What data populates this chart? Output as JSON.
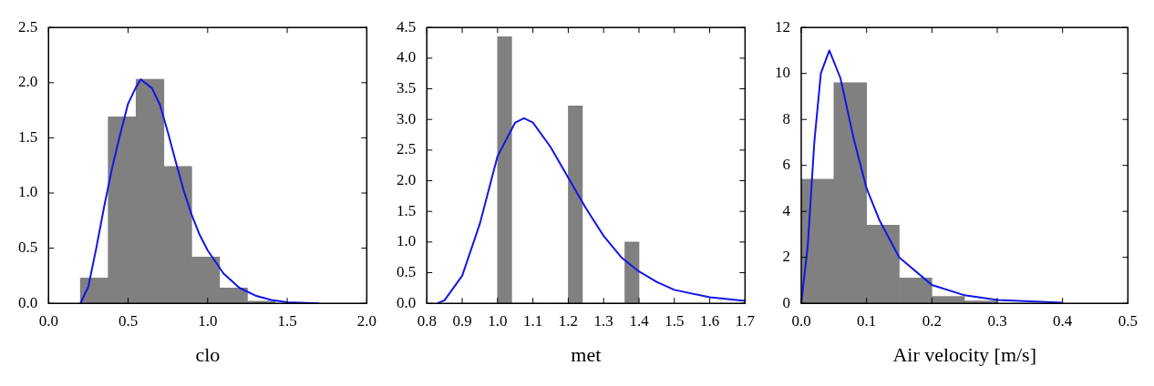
{
  "chart_data": [
    {
      "type": "histogram",
      "xlabel": "clo",
      "bins": [
        0.2,
        0.375,
        0.55,
        0.725,
        0.9,
        1.075,
        1.25,
        1.425
      ],
      "values": [
        0.23,
        1.69,
        2.03,
        1.24,
        0.42,
        0.14,
        0.02
      ],
      "color": "#808080",
      "series": [
        {
          "type": "line",
          "color": "#1414e6",
          "x": [
            0.2,
            0.25,
            0.3,
            0.35,
            0.4,
            0.45,
            0.5,
            0.55,
            0.58,
            0.65,
            0.7,
            0.75,
            0.8,
            0.85,
            0.9,
            0.95,
            1.0,
            1.1,
            1.2,
            1.3,
            1.4,
            1.5,
            1.7
          ],
          "values": [
            0,
            0.15,
            0.5,
            0.88,
            1.23,
            1.53,
            1.81,
            1.96,
            2.03,
            1.95,
            1.8,
            1.55,
            1.28,
            1.02,
            0.8,
            0.62,
            0.48,
            0.27,
            0.14,
            0.07,
            0.03,
            0.01,
            0
          ]
        }
      ],
      "xlim": [
        0,
        2
      ],
      "xticks": [
        {
          "value": 0,
          "label": "0.0"
        },
        0.5,
        {
          "value": 1,
          "label": "1.0"
        },
        1.5,
        {
          "value": 2,
          "label": "2.0"
        }
      ],
      "ylim": [
        0,
        2.5
      ],
      "yticks": [
        {
          "value": 0,
          "label": "0.0"
        },
        0.5,
        {
          "value": 1,
          "label": "1.0"
        },
        1.5,
        {
          "value": 2,
          "label": "2.0"
        },
        2.5
      ]
    },
    {
      "type": "histogram",
      "xlabel": "met",
      "bins": [
        1.0,
        1.04,
        1.08,
        1.12,
        1.16,
        1.2,
        1.24,
        1.28,
        1.32,
        1.36,
        1.4
      ],
      "values": [
        4.35,
        0,
        0,
        0,
        0,
        3.22,
        0,
        0,
        0,
        1.0
      ],
      "color": "#808080",
      "series": [
        {
          "type": "line",
          "color": "#1414e6",
          "x": [
            0.83,
            0.85,
            0.9,
            0.95,
            1.0,
            1.05,
            1.075,
            1.1,
            1.15,
            1.2,
            1.25,
            1.3,
            1.35,
            1.4,
            1.45,
            1.5,
            1.6,
            1.7
          ],
          "values": [
            0,
            0.05,
            0.45,
            1.3,
            2.4,
            2.95,
            3.02,
            2.95,
            2.55,
            2.05,
            1.55,
            1.1,
            0.75,
            0.52,
            0.35,
            0.22,
            0.1,
            0.04
          ]
        }
      ],
      "xlim": [
        0.8,
        1.7
      ],
      "xticks": [
        0.8,
        0.9,
        {
          "value": 1,
          "label": "1.0"
        },
        1.1,
        1.2,
        1.3,
        1.4,
        1.5,
        1.6,
        1.7
      ],
      "ylim": [
        0,
        4.5
      ],
      "yticks": [
        {
          "value": 0,
          "label": "0.0"
        },
        0.5,
        {
          "value": 1,
          "label": "1.0"
        },
        1.5,
        {
          "value": 2,
          "label": "2.0"
        },
        2.5,
        {
          "value": 3,
          "label": "3.0"
        },
        3.5,
        {
          "value": 4,
          "label": "4.0"
        },
        4.5
      ]
    },
    {
      "type": "histogram",
      "xlabel": "Air velocity [m/s]",
      "bins": [
        0,
        0.05,
        0.1,
        0.15,
        0.2,
        0.25,
        0.3
      ],
      "values": [
        5.4,
        9.6,
        3.4,
        1.1,
        0.3,
        0.1
      ],
      "color": "#808080",
      "series": [
        {
          "type": "line",
          "color": "#1414e6",
          "x": [
            0,
            0.01,
            0.02,
            0.03,
            0.043,
            0.06,
            0.08,
            0.1,
            0.12,
            0.15,
            0.2,
            0.25,
            0.3,
            0.4
          ],
          "values": [
            0,
            2.5,
            7,
            10,
            11,
            9.8,
            7.2,
            5.0,
            3.6,
            2.0,
            0.8,
            0.35,
            0.15,
            0.03
          ]
        }
      ],
      "xlim": [
        0,
        0.5
      ],
      "xticks": [
        {
          "value": 0,
          "label": "0.0"
        },
        0.1,
        0.2,
        0.3,
        0.4,
        0.5
      ],
      "ylim": [
        0,
        12
      ],
      "yticks": [
        0,
        2,
        4,
        6,
        8,
        10,
        12
      ]
    }
  ]
}
